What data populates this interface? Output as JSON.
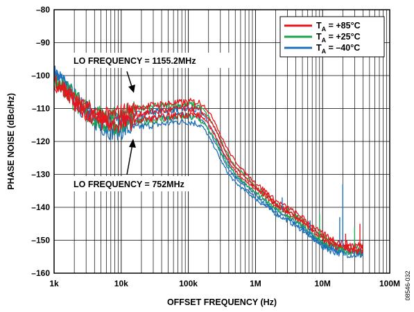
{
  "figure_code": "08546-032",
  "chart_data": {
    "type": "line",
    "xlabel": "OFFSET FREQUENCY (Hz)",
    "ylabel": "PHASE NOISE (dBc/Hz)",
    "xscale": "log",
    "xlim": [
      1000,
      100000000
    ],
    "ylim": [
      -160,
      -80
    ],
    "xticks": [
      {
        "value": 1000,
        "label": "1k"
      },
      {
        "value": 10000,
        "label": "10k"
      },
      {
        "value": 100000,
        "label": "100k"
      },
      {
        "value": 1000000,
        "label": "1M"
      },
      {
        "value": 10000000,
        "label": "10M"
      },
      {
        "value": 100000000,
        "label": "100M"
      }
    ],
    "yticks": [
      {
        "value": -80,
        "label": "–80"
      },
      {
        "value": -90,
        "label": "–90"
      },
      {
        "value": -100,
        "label": "–100"
      },
      {
        "value": -110,
        "label": "–110"
      },
      {
        "value": -120,
        "label": "–120"
      },
      {
        "value": -130,
        "label": "–130"
      },
      {
        "value": -140,
        "label": "–140"
      },
      {
        "value": -150,
        "label": "–150"
      },
      {
        "value": -160,
        "label": "–160"
      }
    ],
    "grid": true,
    "legend_position": "top-right",
    "series": [
      {
        "name": "T_A = +85°C",
        "legend_main": "T",
        "legend_sub": "A",
        "legend_rest": " = +85°C",
        "color": "#e8141c",
        "curves": [
          {
            "x": [
              1000,
              1500,
              2000,
              3000,
              5000,
              7000,
              10000,
              15000,
              20000,
              30000,
              50000,
              70000,
              100000,
              130000,
              150000,
              170000,
              200000,
              250000,
              300000,
              400000,
              500000,
              700000,
              1000000,
              1500000,
              2000000,
              3000000,
              5000000,
              7000000,
              10000000,
              15000000,
              20000000,
              30000000,
              40000000
            ],
            "y": [
              -101,
              -104,
              -107,
              -110,
              -112,
              -112,
              -111,
              -110,
              -109.5,
              -109,
              -108.5,
              -108.3,
              -108,
              -108,
              -108.3,
              -109,
              -111,
              -114,
              -118,
              -123,
              -126,
              -129.5,
              -132.5,
              -135.5,
              -138,
              -140,
              -143,
              -145.5,
              -148,
              -150,
              -151,
              -151.5,
              -151.5
            ]
          },
          {
            "x": [
              1000,
              1500,
              2000,
              3000,
              5000,
              7000,
              10000,
              15000,
              20000,
              30000,
              50000,
              70000,
              100000,
              130000,
              150000,
              170000,
              200000,
              250000,
              300000,
              400000,
              500000,
              700000,
              1000000,
              1500000,
              2000000,
              3000000,
              5000000,
              7000000,
              10000000,
              15000000,
              20000000,
              30000000,
              40000000
            ],
            "y": [
              -102,
              -105,
              -108,
              -111,
              -113,
              -113.5,
              -113,
              -112,
              -111.5,
              -111,
              -110.5,
              -110,
              -110,
              -110.3,
              -110.8,
              -111.5,
              -113,
              -116,
              -120,
              -125,
              -128,
              -131,
              -134,
              -136.5,
              -139,
              -141,
              -144,
              -146.5,
              -149,
              -151,
              -152,
              -152.5,
              -152.5
            ]
          },
          {
            "x": [
              1000,
              1500,
              2000,
              3000,
              5000,
              7000,
              10000,
              15000,
              20000,
              30000,
              50000,
              70000,
              100000,
              130000,
              150000,
              170000,
              200000,
              250000,
              300000,
              400000,
              500000,
              700000,
              1000000,
              1500000,
              2000000,
              3000000,
              5000000,
              7000000,
              10000000,
              15000000,
              20000000,
              30000000,
              40000000
            ],
            "y": [
              -101.5,
              -104.5,
              -108,
              -111.5,
              -114,
              -115,
              -115,
              -114,
              -113.5,
              -113,
              -112.5,
              -112,
              -111.8,
              -112,
              -112.3,
              -113,
              -115,
              -118,
              -121.5,
              -126,
              -129,
              -132,
              -134.5,
              -137,
              -139.5,
              -141.5,
              -144.5,
              -147,
              -149.5,
              -151.5,
              -152.5,
              -153,
              -153
            ]
          }
        ]
      },
      {
        "name": "T_A = +25°C",
        "legend_main": "T",
        "legend_sub": "A",
        "legend_rest": " = +25°C",
        "color": "#1aa64a",
        "curves": [
          {
            "x": [
              1000,
              1500,
              2000,
              3000,
              5000,
              7000,
              10000,
              15000,
              20000,
              30000,
              50000,
              70000,
              100000,
              130000,
              150000,
              170000,
              200000,
              250000,
              300000,
              400000,
              500000,
              700000,
              1000000,
              1500000,
              2000000,
              3000000,
              5000000,
              7000000,
              10000000,
              15000000,
              20000000,
              30000000,
              40000000
            ],
            "y": [
              -100.5,
              -103.5,
              -106.5,
              -109.5,
              -111.5,
              -112,
              -111.5,
              -110.5,
              -110,
              -109.5,
              -109,
              -109,
              -108.8,
              -109,
              -109.5,
              -110.5,
              -112.5,
              -116,
              -119.5,
              -124.5,
              -127.5,
              -130.5,
              -133.5,
              -136.5,
              -139,
              -141,
              -144,
              -146.5,
              -149,
              -151,
              -152,
              -152,
              -152
            ]
          },
          {
            "x": [
              1000,
              1500,
              2000,
              3000,
              5000,
              7000,
              10000,
              15000,
              20000,
              30000,
              50000,
              70000,
              100000,
              130000,
              150000,
              170000,
              200000,
              250000,
              300000,
              400000,
              500000,
              700000,
              1000000,
              1500000,
              2000000,
              3000000,
              5000000,
              7000000,
              10000000,
              15000000,
              20000000,
              30000000,
              40000000
            ],
            "y": [
              -101.5,
              -105,
              -108.5,
              -112,
              -114.5,
              -115.5,
              -115.5,
              -114.5,
              -114,
              -113.5,
              -113,
              -112.5,
              -112.5,
              -113,
              -113.5,
              -114.5,
              -116.5,
              -119.5,
              -123,
              -127.5,
              -130,
              -133,
              -135.5,
              -138,
              -140.5,
              -142.5,
              -145.5,
              -148,
              -150.5,
              -152,
              -153,
              -153.5,
              -153.5
            ]
          }
        ]
      },
      {
        "name": "T_A = –40°C",
        "legend_main": "T",
        "legend_sub": "A",
        "legend_rest": " = –40°C",
        "color": "#1c6fb8",
        "curves": [
          {
            "x": [
              1000,
              1500,
              2000,
              3000,
              5000,
              7000,
              10000,
              15000,
              20000,
              30000,
              50000,
              70000,
              100000,
              130000,
              150000,
              170000,
              200000,
              250000,
              300000,
              400000,
              500000,
              700000,
              1000000,
              1500000,
              2000000,
              3000000,
              5000000,
              7000000,
              10000000,
              15000000,
              20000000,
              30000000,
              40000000
            ],
            "y": [
              -99,
              -102.5,
              -106,
              -110,
              -113,
              -113.5,
              -113,
              -112,
              -111.5,
              -111,
              -110.5,
              -110,
              -110,
              -110.5,
              -111,
              -112,
              -114.5,
              -118,
              -122,
              -127,
              -130,
              -133,
              -136,
              -138.5,
              -141,
              -143,
              -146,
              -148.5,
              -151,
              -152.5,
              -153,
              -153.5,
              -153.5
            ]
          },
          {
            "x": [
              1000,
              1500,
              2000,
              3000,
              5000,
              7000,
              10000,
              15000,
              20000,
              30000,
              50000,
              70000,
              100000,
              130000,
              150000,
              170000,
              200000,
              250000,
              300000,
              400000,
              500000,
              700000,
              1000000,
              1500000,
              2000000,
              3000000,
              5000000,
              7000000,
              10000000,
              15000000,
              20000000,
              30000000,
              40000000
            ],
            "y": [
              -100,
              -104,
              -107.5,
              -112,
              -115.5,
              -117,
              -117,
              -116,
              -115.5,
              -115,
              -114.5,
              -114,
              -114,
              -114.5,
              -115,
              -116,
              -118.5,
              -122,
              -125.5,
              -130,
              -132.5,
              -135,
              -137.5,
              -140,
              -142,
              -144,
              -147,
              -149.5,
              -152,
              -153.5,
              -154,
              -154.5,
              -154.5
            ]
          },
          {
            "x": [
              1000,
              1500,
              2000,
              3000,
              5000,
              7000,
              10000,
              15000,
              20000,
              30000,
              50000,
              70000,
              100000,
              130000,
              150000,
              170000,
              200000,
              250000,
              300000,
              400000,
              500000,
              700000,
              1000000,
              1500000,
              2000000,
              3000000,
              5000000,
              7000000,
              10000000,
              15000000,
              20000000,
              30000000,
              40000000
            ],
            "y": [
              -99.5,
              -103,
              -107,
              -111,
              -114.5,
              -115.5,
              -115,
              -114,
              -113.5,
              -113,
              -112.5,
              -112,
              -112,
              -112.5,
              -113,
              -114,
              -116.5,
              -120,
              -123.5,
              -128.5,
              -131,
              -134,
              -137,
              -139.5,
              -141.5,
              -143.5,
              -146.5,
              -149,
              -151.5,
              -153,
              -153.5,
              -154,
              -154
            ]
          }
        ]
      }
    ],
    "spikes": [
      {
        "x": 2500000,
        "y_top": -137,
        "y_base": -141,
        "color": "#1c6fb8"
      },
      {
        "x": 6500000,
        "y_top": -144,
        "y_base": -148,
        "color": "#1c6fb8"
      },
      {
        "x": 9000000,
        "y_top": -142,
        "y_base": -150,
        "color": "#1aa64a"
      },
      {
        "x": 18000000,
        "y_top": -143,
        "y_base": -151,
        "color": "#1c6fb8"
      },
      {
        "x": 20000000,
        "y_top": -133,
        "y_base": -152,
        "color": "#1c6fb8"
      },
      {
        "x": 22000000,
        "y_top": -148,
        "y_base": -152,
        "color": "#e8141c"
      },
      {
        "x": 30000000,
        "y_top": -146,
        "y_base": -152,
        "color": "#1aa64a"
      },
      {
        "x": 36000000,
        "y_top": -145,
        "y_base": -152,
        "color": "#e8141c"
      }
    ],
    "annotations": [
      {
        "text": "LO FREQUENCY = 1155.2MHz",
        "arrow_to": {
          "x": 17000,
          "y": -110
        }
      },
      {
        "text": "LO FREQUENCY = 752MHz",
        "arrow_to": {
          "x": 17000,
          "y": -118
        }
      }
    ]
  }
}
